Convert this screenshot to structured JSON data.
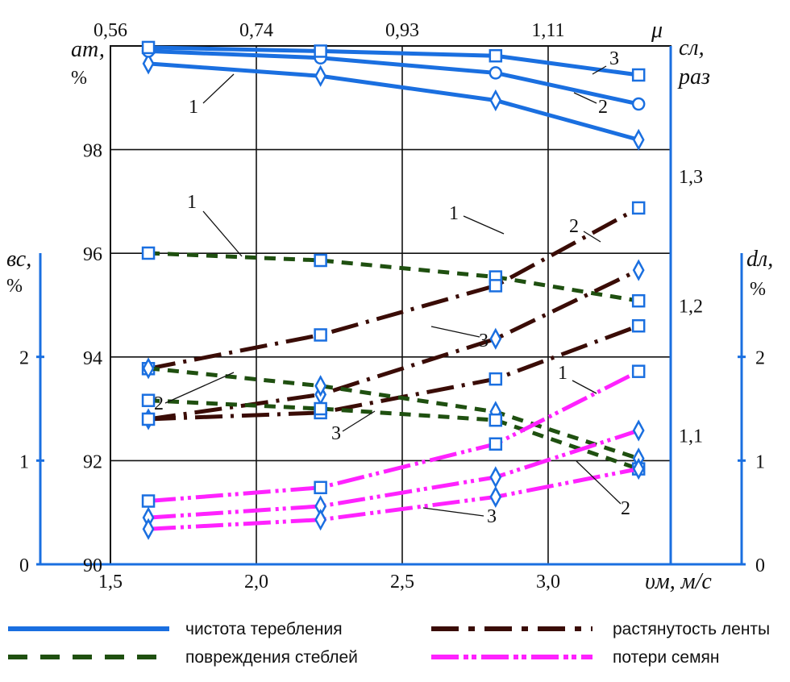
{
  "chart_data": {
    "type": "line",
    "title": "",
    "xlabel": "υм, м/с",
    "xlim": [
      1.5,
      3.42
    ],
    "xticks": [
      "1,5",
      "2,0",
      "2,5",
      "3,0"
    ],
    "xtick_values": [
      1.5,
      2.0,
      2.5,
      3.0
    ],
    "top_axis": {
      "label": "μ",
      "ticks": [
        "0,56",
        "0,74",
        "0,93",
        "1,11"
      ]
    },
    "axes": {
      "a": {
        "label_main": "aт,",
        "label_unit": "%",
        "ylim": [
          90,
          100
        ],
        "ticks": [
          "90",
          "92",
          "94",
          "96",
          "98"
        ],
        "tick_values": [
          90,
          92,
          94,
          96,
          98
        ]
      },
      "c": {
        "label_main": "cл,",
        "label_unit": "раз",
        "ylim": [
          1.0,
          1.4
        ],
        "ticks": [
          "1,1",
          "1,2",
          "1,3"
        ],
        "tick_values": [
          1.1,
          1.2,
          1.3
        ]
      },
      "b": {
        "label_main": "вс,",
        "label_unit": "%",
        "ylim": [
          0,
          3
        ],
        "ticks": [
          "0",
          "1",
          "2"
        ],
        "tick_values": [
          0,
          1,
          2
        ]
      },
      "d": {
        "label_main": "dл,",
        "label_unit": "%",
        "ylim": [
          0,
          3
        ],
        "ticks": [
          "0",
          "1",
          "2"
        ],
        "tick_values": [
          0,
          1,
          2
        ]
      }
    },
    "x": [
      1.63,
      2.22,
      2.82,
      3.31
    ],
    "series": [
      {
        "group": "чистота теребления",
        "label": "1",
        "axis": "a",
        "marker": "diamond",
        "values": [
          99.66,
          99.42,
          98.95,
          98.19
        ]
      },
      {
        "group": "чистота теребления",
        "label": "2",
        "axis": "a",
        "marker": "circle",
        "values": [
          99.9,
          99.77,
          99.48,
          98.88
        ]
      },
      {
        "group": "чистота теребления",
        "label": "3",
        "axis": "a",
        "marker": "square",
        "values": [
          99.97,
          99.9,
          99.81,
          99.44
        ]
      },
      {
        "group": "повреждения стеблей",
        "label": "1",
        "axis": "b",
        "marker": "square",
        "values": [
          3.0,
          2.93,
          2.77,
          2.54
        ]
      },
      {
        "group": "растянутость ленты",
        "label": "1",
        "axis": "c",
        "marker": "square",
        "values": [
          1.151,
          1.177,
          1.215,
          1.275
        ]
      },
      {
        "group": "растянутость ленты",
        "label": "2",
        "axis": "c",
        "marker": "diamond",
        "values": [
          1.112,
          1.131,
          1.174,
          1.227
        ]
      },
      {
        "group": "растянутость ленты",
        "label": "3",
        "axis": "c",
        "marker": "square",
        "values": [
          1.112,
          1.117,
          1.143,
          1.184
        ]
      },
      {
        "group": "повреждения стеблей",
        "label": "2",
        "axis": "b",
        "marker": "diamond",
        "values": [
          1.89,
          1.72,
          1.47,
          1.02
        ]
      },
      {
        "group": "повреждения стеблей",
        "label": "3",
        "axis": "b",
        "marker": "square",
        "values": [
          1.58,
          1.5,
          1.39,
          0.92
        ]
      },
      {
        "group": "потери семян",
        "label": "1",
        "axis": "d",
        "marker": "square",
        "values": [
          0.61,
          0.74,
          1.16,
          1.86
        ]
      },
      {
        "group": "потери семян",
        "label": "2",
        "axis": "d",
        "marker": "diamond",
        "values": [
          0.45,
          0.56,
          0.84,
          1.29
        ]
      },
      {
        "group": "потери семян",
        "label": "3",
        "axis": "d",
        "marker": "diamond",
        "values": [
          0.34,
          0.43,
          0.65,
          0.92
        ]
      }
    ],
    "legend": [
      {
        "label": "чистота теребления",
        "color": "#1a6fe0",
        "style": "solid"
      },
      {
        "label": "растянутость ленты",
        "color": "#3a0c06",
        "style": "dash-dot"
      },
      {
        "label": "повреждения стеблей",
        "color": "#1f5010",
        "style": "dashed"
      },
      {
        "label": "потери семян",
        "color": "#ff22ff",
        "style": "dash-dot-dot"
      }
    ],
    "legend_placement": "bottom",
    "grid": true,
    "colors": {
      "a": "#1a6fe0",
      "b": "#1f5010",
      "c": "#3a0c06",
      "d": "#ff22ff",
      "marker": "#1a6fe0",
      "axis": "#1a6fe0"
    }
  }
}
